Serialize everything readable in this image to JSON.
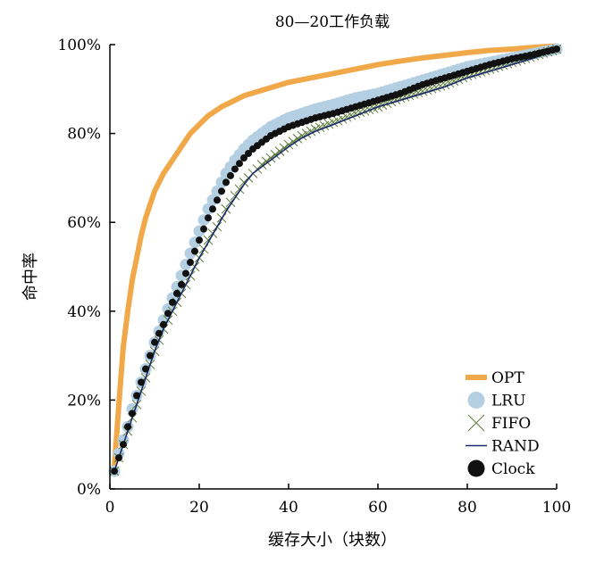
{
  "chart_data": {
    "type": "line",
    "title": "80—20工作负载",
    "xlabel": "缓存大小（块数）",
    "ylabel": "命中率",
    "xlim": [
      0,
      100
    ],
    "ylim": [
      0,
      100
    ],
    "x_ticks": [
      "0",
      "20",
      "40",
      "60",
      "80",
      "100"
    ],
    "y_ticks": [
      "0%",
      "20%",
      "40%",
      "60%",
      "80%",
      "100%"
    ],
    "legend_position": "bottom-right",
    "series": [
      {
        "name": "OPT",
        "color": "#f0a848",
        "marker": "line-thick",
        "x": [
          1,
          2,
          3,
          4,
          5,
          6,
          7,
          8,
          9,
          10,
          12,
          14,
          16,
          18,
          20,
          22,
          25,
          28,
          30,
          35,
          40,
          45,
          50,
          55,
          60,
          65,
          70,
          75,
          80,
          85,
          90,
          95,
          100
        ],
        "y": [
          5,
          19,
          32,
          40,
          47,
          52,
          57,
          61,
          64,
          67,
          71,
          74,
          77,
          80,
          82,
          84,
          86,
          87.5,
          88.5,
          90,
          91.5,
          92.5,
          93.5,
          94.5,
          95.5,
          96.3,
          97,
          97.6,
          98.2,
          98.7,
          99,
          99.4,
          99.7
        ]
      },
      {
        "name": "LRU",
        "color": "#b4cfe2",
        "marker": "circle-large",
        "x": [
          1,
          2,
          3,
          4,
          5,
          6,
          7,
          8,
          9,
          10,
          12,
          14,
          16,
          18,
          20,
          22,
          24,
          26,
          28,
          30,
          32,
          34,
          36,
          38,
          40,
          43,
          46,
          50,
          55,
          60,
          65,
          70,
          75,
          80,
          85,
          90,
          95,
          100
        ],
        "y": [
          4,
          8,
          11,
          14,
          18,
          21,
          24,
          27,
          30,
          33,
          38,
          43,
          48,
          53,
          58,
          63,
          67,
          71,
          74,
          76.5,
          78.5,
          80,
          81.5,
          82.5,
          83.5,
          84.5,
          85.5,
          86.5,
          88,
          89,
          90.5,
          92,
          93.5,
          95,
          96,
          97,
          98,
          99
        ]
      },
      {
        "name": "FIFO",
        "color": "#5a7a38",
        "marker": "x",
        "x": [
          1,
          2,
          3,
          4,
          5,
          6,
          7,
          8,
          9,
          10,
          12,
          14,
          16,
          18,
          20,
          22,
          24,
          26,
          28,
          30,
          32,
          34,
          36,
          38,
          40,
          43,
          46,
          50,
          55,
          60,
          65,
          70,
          75,
          80,
          85,
          90,
          95,
          100
        ],
        "y": [
          4,
          7,
          10,
          13,
          16,
          19,
          22,
          25,
          28,
          31,
          36,
          40,
          44,
          48,
          52,
          56,
          59,
          63,
          66,
          69,
          71,
          73,
          74.5,
          76,
          77.5,
          79.5,
          81,
          82.5,
          84.5,
          86,
          88,
          89.5,
          91,
          93,
          94.5,
          96,
          97.5,
          99
        ]
      },
      {
        "name": "RAND",
        "color": "#1a2a6a",
        "marker": "line",
        "x": [
          1,
          2,
          3,
          4,
          5,
          6,
          7,
          8,
          9,
          10,
          12,
          14,
          16,
          18,
          20,
          22,
          24,
          26,
          28,
          30,
          32,
          34,
          36,
          38,
          40,
          43,
          46,
          50,
          55,
          60,
          65,
          70,
          75,
          80,
          85,
          90,
          95,
          100
        ],
        "y": [
          4,
          7,
          10,
          13,
          16,
          19,
          22,
          25,
          28,
          31,
          36,
          40,
          44,
          48,
          52,
          55.5,
          59,
          62.5,
          65.5,
          68.5,
          71,
          72.5,
          74,
          75.5,
          77,
          79,
          80.5,
          82,
          84,
          86,
          87.5,
          89,
          90.5,
          92.5,
          94,
          95.5,
          97,
          99
        ]
      },
      {
        "name": "Clock",
        "color": "#111111",
        "marker": "circle",
        "x": [
          1,
          2,
          3,
          4,
          5,
          6,
          7,
          8,
          9,
          10,
          12,
          14,
          16,
          18,
          20,
          22,
          24,
          26,
          28,
          30,
          32,
          34,
          36,
          38,
          40,
          43,
          46,
          50,
          55,
          60,
          65,
          70,
          75,
          80,
          85,
          90,
          95,
          100
        ],
        "y": [
          4,
          7,
          10,
          14,
          17,
          21,
          24,
          27,
          30,
          33,
          37,
          42,
          46,
          51,
          56,
          61,
          65,
          69,
          72,
          74.5,
          76.5,
          78,
          79.5,
          80.5,
          81.5,
          82.5,
          83.5,
          84.5,
          86,
          87.5,
          89,
          91,
          92.5,
          94,
          95.5,
          96.8,
          97.8,
          99
        ]
      }
    ]
  }
}
